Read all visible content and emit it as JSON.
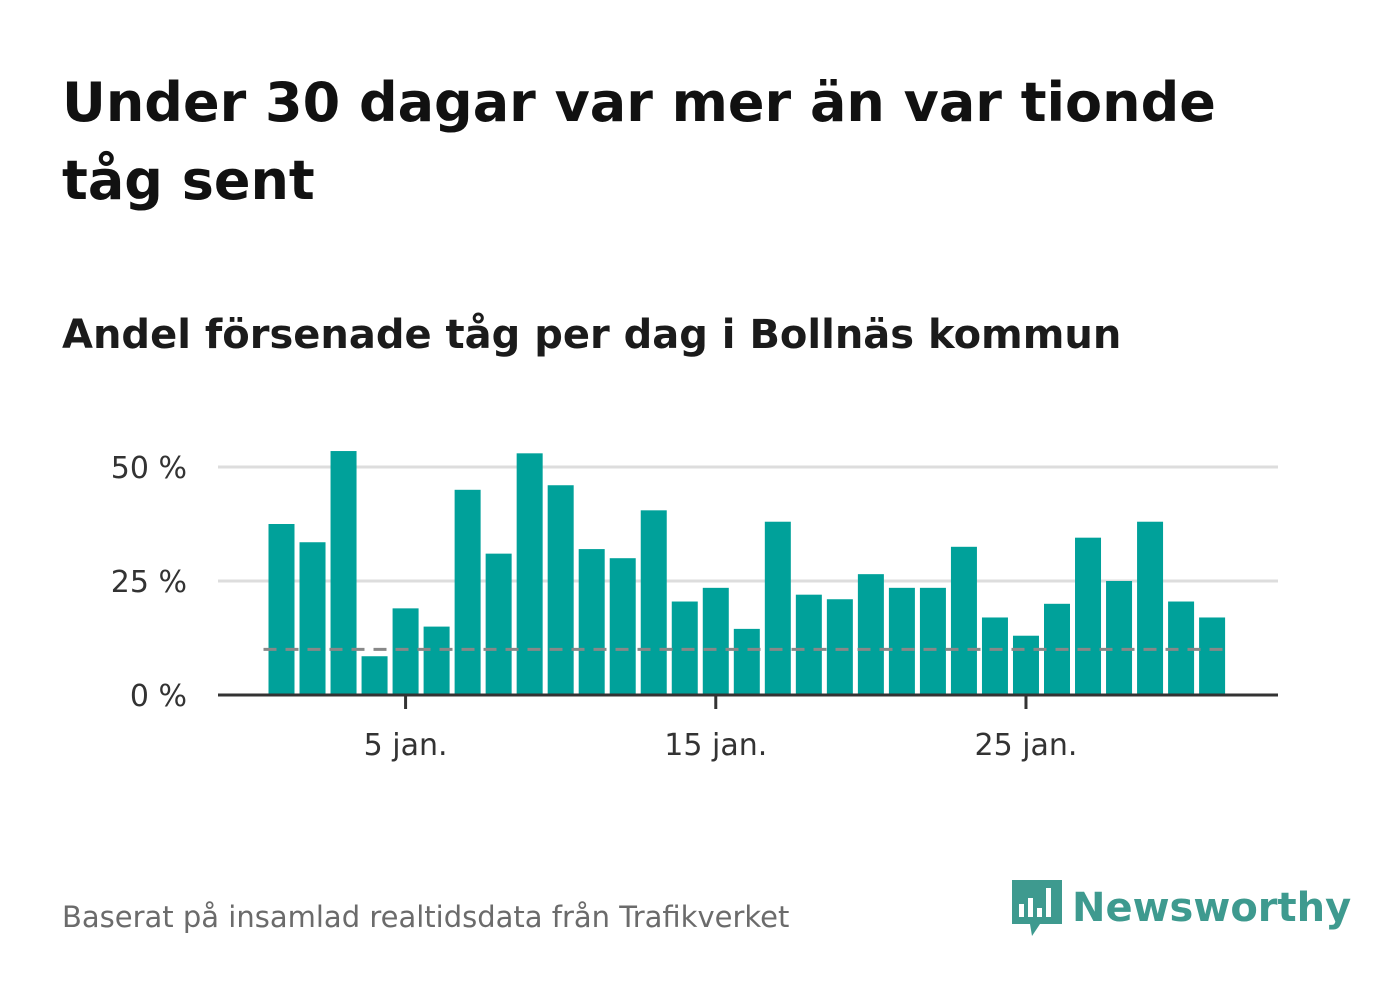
{
  "title": "Under 30 dagar var mer än var tionde tåg sent",
  "subtitle": "Andel försenade tåg per dag i Bollnäs kommun",
  "footer": "Baserat på insamlad realtidsdata från Trafikverket",
  "logo": {
    "text": "Newsworthy",
    "icon": "newsworthy-bars-icon",
    "color": "#3e9a8f"
  },
  "colors": {
    "bar": "#00a19a",
    "grid": "#dddddd",
    "axis": "#333333",
    "reference_line": "#888888"
  },
  "chart_data": {
    "type": "bar",
    "x": [
      1,
      2,
      3,
      4,
      5,
      6,
      7,
      8,
      9,
      10,
      11,
      12,
      13,
      14,
      15,
      16,
      17,
      18,
      19,
      20,
      21,
      22,
      23,
      24,
      25,
      26,
      27,
      28,
      29,
      30,
      31
    ],
    "x_tick_labels": [
      {
        "x": 5,
        "label": "5 jan."
      },
      {
        "x": 15,
        "label": "15 jan."
      },
      {
        "x": 25,
        "label": "25 jan."
      }
    ],
    "values": [
      37.5,
      33.5,
      53.5,
      8.5,
      19,
      15,
      45,
      31,
      53,
      46,
      32,
      30,
      40.5,
      20.5,
      23.5,
      14.5,
      38,
      22,
      21,
      26.5,
      23.5,
      23.5,
      32.5,
      17,
      13,
      20,
      34.5,
      25,
      38,
      20.5,
      17
    ],
    "y_ticks": [
      0,
      25,
      50
    ],
    "y_tick_labels": [
      "0 %",
      "25 %",
      "50 %"
    ],
    "ylim": [
      0,
      55
    ],
    "reference_line": 10,
    "grid": true,
    "xlabel": "",
    "ylabel": ""
  }
}
